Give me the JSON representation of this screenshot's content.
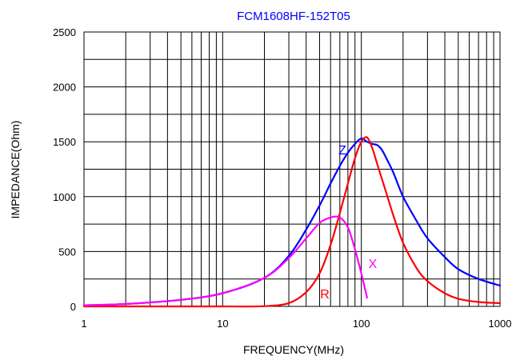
{
  "chart_data": {
    "type": "line",
    "title": "FCM1608HF-152T05",
    "xlabel": "FREQUENCY(MHz)",
    "ylabel": "IMPEDANCE(Ohm)",
    "x_scale": "log",
    "xlim": [
      1,
      1000
    ],
    "ylim": [
      0,
      2500
    ],
    "x_ticks": [
      "1",
      "10",
      "100",
      "1000"
    ],
    "y_ticks": [
      "0",
      "500",
      "1000",
      "1500",
      "2000",
      "2500"
    ],
    "grid": true,
    "colors": {
      "title": "#0000ff",
      "grid": "#000000",
      "Z": "#0000ff",
      "R": "#ff0000",
      "X": "#ff00ff"
    },
    "series": [
      {
        "name": "Z",
        "x": [
          1,
          2,
          5,
          10,
          20,
          30,
          40,
          50,
          60,
          70,
          80,
          90,
          100,
          110,
          120,
          130,
          140,
          150,
          170,
          200,
          250,
          300,
          400,
          500,
          700,
          1000
        ],
        "y": [
          10,
          22,
          60,
          120,
          260,
          460,
          700,
          920,
          1120,
          1280,
          1400,
          1480,
          1530,
          1500,
          1480,
          1470,
          1430,
          1360,
          1220,
          1000,
          780,
          620,
          450,
          340,
          250,
          190
        ]
      },
      {
        "name": "R",
        "x": [
          1,
          5,
          10,
          20,
          30,
          40,
          50,
          60,
          70,
          80,
          90,
          100,
          110,
          120,
          130,
          150,
          170,
          200,
          250,
          300,
          400,
          500,
          700,
          1000
        ],
        "y": [
          0,
          0,
          0,
          2,
          30,
          130,
          300,
          560,
          850,
          1120,
          1350,
          1500,
          1540,
          1440,
          1300,
          1050,
          830,
          580,
          350,
          230,
          120,
          70,
          40,
          30
        ]
      },
      {
        "name": "X",
        "x": [
          1,
          2,
          5,
          10,
          20,
          30,
          40,
          50,
          60,
          70,
          80,
          90,
          100,
          110
        ],
        "y": [
          10,
          22,
          60,
          120,
          260,
          440,
          620,
          760,
          810,
          810,
          720,
          520,
          300,
          80
        ]
      }
    ]
  }
}
